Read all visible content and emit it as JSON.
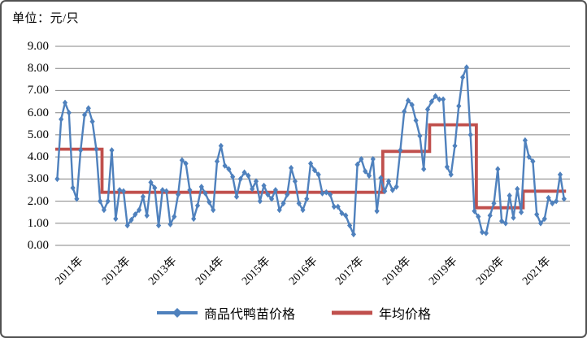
{
  "unit_label": "单位：元/只",
  "colors": {
    "series_blue": "#4F81BD",
    "series_red": "#C0504D",
    "gridline": "#848484",
    "text": "#000000",
    "frame_border": "#515151",
    "background": "#FFFFFF"
  },
  "legend": {
    "items": [
      {
        "label": "商品代鸭苗价格",
        "color": "#4F81BD",
        "marker": "line-with-diamond"
      },
      {
        "label": "年均价格",
        "color": "#C0504D",
        "marker": "line"
      }
    ]
  },
  "chart_data": {
    "type": "line",
    "title": "",
    "unit": "元/只",
    "xlabel": "",
    "ylabel": "",
    "ylim": [
      0,
      9
    ],
    "y_tick_step": 1,
    "grid": "horizontal",
    "legend_position": "bottom",
    "y_tick_labels": [
      "0.00",
      "1.00",
      "2.00",
      "3.00",
      "4.00",
      "5.00",
      "6.00",
      "7.00",
      "8.00",
      "9.00"
    ],
    "x_tick_labels": [
      "2011年",
      "2012年",
      "2013年",
      "2014年",
      "2015年",
      "2016年",
      "2017年",
      "2018年",
      "2019年",
      "2020年",
      "2021年"
    ],
    "series": [
      {
        "name": "商品代鸭苗价格",
        "type": "line",
        "marker": "diamond",
        "color": "#4F81BD",
        "frequency": "monthly",
        "start": "2011-01",
        "values": [
          3.0,
          5.7,
          6.45,
          6.0,
          2.6,
          2.1,
          4.3,
          5.9,
          6.2,
          5.6,
          4.35,
          2.0,
          1.6,
          2.0,
          4.3,
          1.2,
          2.5,
          2.45,
          0.9,
          1.15,
          1.4,
          1.6,
          2.2,
          1.35,
          2.85,
          2.6,
          0.9,
          2.5,
          2.45,
          0.95,
          1.3,
          2.3,
          3.85,
          3.7,
          2.5,
          1.2,
          1.8,
          2.65,
          2.35,
          1.95,
          1.6,
          3.8,
          4.5,
          3.6,
          3.45,
          3.1,
          2.2,
          3.0,
          3.3,
          3.15,
          2.55,
          2.9,
          2.0,
          2.7,
          2.3,
          2.1,
          2.5,
          1.6,
          1.9,
          2.3,
          3.5,
          2.9,
          1.9,
          1.6,
          2.1,
          3.7,
          3.4,
          3.2,
          2.35,
          2.4,
          2.3,
          1.75,
          1.75,
          1.45,
          1.35,
          0.9,
          0.5,
          3.65,
          3.9,
          3.35,
          3.15,
          3.9,
          1.55,
          3.05,
          2.45,
          2.9,
          2.5,
          2.65,
          4.3,
          6.05,
          6.55,
          6.35,
          5.65,
          4.95,
          3.45,
          6.15,
          6.5,
          6.75,
          6.6,
          6.6,
          3.55,
          3.2,
          4.5,
          6.3,
          7.6,
          8.05,
          5.0,
          1.55,
          1.3,
          0.6,
          0.55,
          1.35,
          1.9,
          3.45,
          1.1,
          1.0,
          2.25,
          1.25,
          2.55,
          1.5,
          4.75,
          4.0,
          3.8,
          1.4,
          1.0,
          1.2,
          2.15,
          1.9,
          2.0,
          3.2,
          2.1
        ]
      },
      {
        "name": "年均价格",
        "type": "step",
        "color": "#C0504D",
        "frequency": "annual",
        "years": [
          "2011",
          "2012",
          "2013",
          "2014",
          "2015",
          "2016",
          "2017",
          "2018",
          "2019",
          "2020",
          "2021"
        ],
        "values": [
          4.35,
          2.4,
          2.4,
          2.4,
          2.4,
          2.4,
          2.4,
          4.25,
          5.45,
          1.7,
          2.45
        ]
      }
    ]
  }
}
